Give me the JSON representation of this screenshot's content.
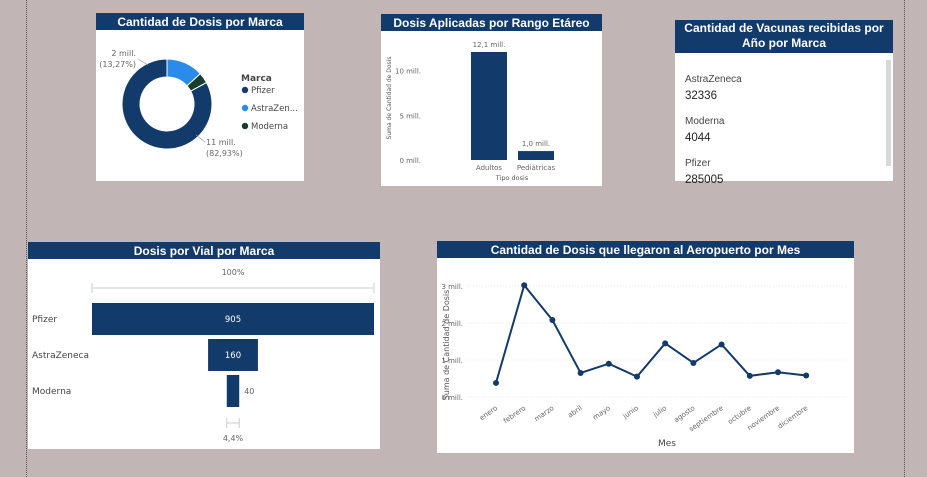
{
  "donut": {
    "title": "Cantidad de Dosis por Marca",
    "label_top": [
      "2 mill.",
      "(13,27%)"
    ],
    "label_bottom": [
      "11 mill.",
      "(82,93%)"
    ],
    "legend_title": "Marca",
    "legend": [
      {
        "label": "Pfizer",
        "color": "#123a6b"
      },
      {
        "label": "AstraZen...",
        "color": "#2b8bea"
      },
      {
        "label": "Moderna",
        "color": "#173d2f"
      }
    ]
  },
  "age_chart": {
    "title": "Dosis Aplicadas por Rango Etáreo",
    "ylabel": "Suma de Cantidad de Dosis",
    "xlabel": "Tipo dosis",
    "yticks": [
      "0 mill.",
      "5 mill.",
      "10 mill."
    ],
    "data_labels": [
      "12,1 mill.",
      "1,0 mill."
    ]
  },
  "vacunas_card": {
    "title": "Cantidad de Vacunas recibidas por Año por Marca",
    "items": [
      {
        "name": "AstraZeneca",
        "value": "32336"
      },
      {
        "name": "Moderna",
        "value": "4044"
      },
      {
        "name": "Pfizer",
        "value": "285005"
      }
    ]
  },
  "vial_chart": {
    "title": "Dosis por Vial por Marca",
    "top_label": "100%",
    "bottom_label": "4,4%"
  },
  "airport_chart": {
    "title": "Cantidad de Dosis que llegaron al Aeropuerto por Mes",
    "ylabel": "Suma de Cantidad de Dosis",
    "xlabel": "Mes",
    "yticks": [
      "0 mill.",
      "1 mill.",
      "2 mill.",
      "3 mill."
    ]
  },
  "chart_data": [
    {
      "type": "pie",
      "title": "Cantidad de Dosis por Marca",
      "categories": [
        "Pfizer",
        "AstraZeneca",
        "Moderna"
      ],
      "values": [
        82.93,
        13.27,
        3.8
      ],
      "unit": "%",
      "legend_title": "Marca",
      "legend_position": "right"
    },
    {
      "type": "bar",
      "title": "Dosis Aplicadas por Rango Etáreo",
      "categories": [
        "Adultos",
        "Pediátricas"
      ],
      "values": [
        12.1,
        1.0
      ],
      "unit": "mill.",
      "xlabel": "Tipo dosis",
      "ylabel": "Suma de Cantidad de Dosis",
      "ylim": [
        0,
        14
      ]
    },
    {
      "type": "bar",
      "title": "Dosis por Vial por Marca",
      "orientation": "horizontal",
      "categories": [
        "Pfizer",
        "AstraZeneca",
        "Moderna"
      ],
      "values": [
        905,
        160,
        40
      ]
    },
    {
      "type": "line",
      "title": "Cantidad de Dosis que llegaron al Aeropuerto por Mes",
      "categories": [
        "enero",
        "febrero",
        "marzo",
        "abril",
        "mayo",
        "junio",
        "julio",
        "agosto",
        "septiembre",
        "octubre",
        "noviembre",
        "diciembre"
      ],
      "values": [
        0.38,
        3.02,
        2.08,
        0.65,
        0.9,
        0.55,
        1.45,
        0.92,
        1.42,
        0.57,
        0.67,
        0.58
      ],
      "unit": "mill.",
      "xlabel": "Mes",
      "ylabel": "Suma de Cantidad de Dosis",
      "ylim": [
        0,
        3.3
      ]
    }
  ]
}
